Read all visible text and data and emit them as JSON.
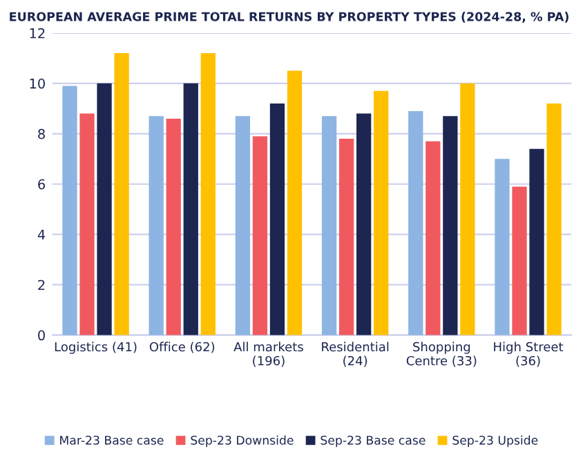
{
  "chart_data": {
    "type": "bar",
    "title": "EUROPEAN AVERAGE PRIME TOTAL RETURNS BY PROPERTY TYPES (2024-28, % PA)",
    "categories": [
      "Logistics (41)",
      "Office (62)",
      "All markets\n(196)",
      "Residential\n(24)",
      "Shopping\nCentre (33)",
      "High Street\n(36)"
    ],
    "series": [
      {
        "name": "Mar-23 Base case",
        "color": "#8db4e2",
        "values": [
          9.9,
          8.7,
          8.7,
          8.7,
          8.9,
          7.0
        ]
      },
      {
        "name": "Sep-23 Downside",
        "color": "#f05a5f",
        "values": [
          8.8,
          8.6,
          7.9,
          7.8,
          7.7,
          5.9
        ]
      },
      {
        "name": "Sep-23 Base case",
        "color": "#1c2650",
        "values": [
          10.0,
          10.0,
          9.2,
          8.8,
          8.7,
          7.4
        ]
      },
      {
        "name": "Sep-23 Upside",
        "color": "#ffc000",
        "values": [
          11.2,
          11.2,
          10.5,
          9.7,
          10.0,
          9.2
        ]
      }
    ],
    "ylim": [
      0,
      12
    ],
    "yticks": [
      0,
      2,
      4,
      6,
      8,
      10,
      12
    ],
    "grid": "y",
    "legend": "bottom"
  }
}
